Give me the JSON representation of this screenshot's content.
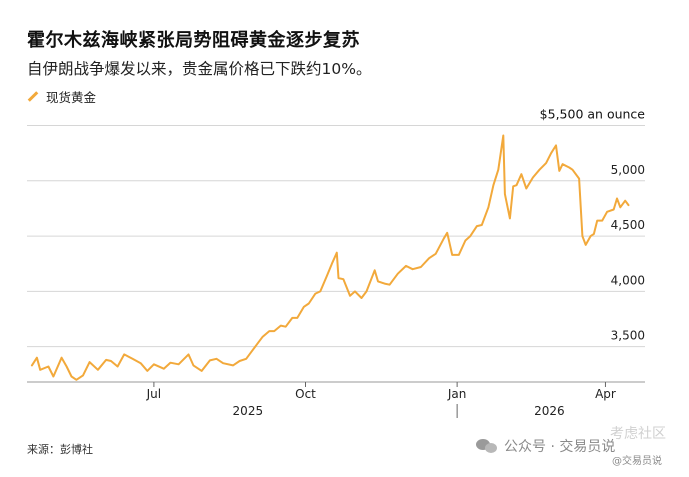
{
  "title": "霍尔木兹海峡紧张局势阻碍黄金逐步复苏",
  "subtitle": "自伊朗战争爆发以来，贵金属价格已下跌约10%。",
  "legend_label": "现货黄金",
  "source": "来源：彭博社",
  "watermark": {
    "main": "公众号 · 交易员说",
    "handle": "@交易员说",
    "faint": "考虑社区"
  },
  "colors": {
    "line": "#f2a93b",
    "grid": "#d6d6d6",
    "text": "#111111"
  },
  "chart_data": {
    "type": "line",
    "title": "霍尔木兹海峡紧张局势阻碍黄金逐步复苏",
    "subtitle": "自伊朗战争爆发以来，贵金属价格已下跌约10%。",
    "y_unit_label": "$5,500 an ounce",
    "ylim": [
      3180,
      5550
    ],
    "y_ticks": [
      {
        "value": 5500,
        "label": "$5,500 an ounce"
      },
      {
        "value": 5000,
        "label": "5,000"
      },
      {
        "value": 4500,
        "label": "4,500"
      },
      {
        "value": 4000,
        "label": "4,000"
      },
      {
        "value": 3500,
        "label": "3,500"
      }
    ],
    "xlim": [
      "2025-04-15",
      "2026-04-25"
    ],
    "x_ticks": [
      {
        "date": "2025-07-01",
        "label": "Jul"
      },
      {
        "date": "2025-10-01",
        "label": "Oct"
      },
      {
        "date": "2026-01-01",
        "label": "Jan"
      },
      {
        "date": "2026-04-01",
        "label": "Apr"
      }
    ],
    "year_labels": [
      {
        "date": "2025-08-27",
        "label": "2025"
      },
      {
        "date": "2026-02-26",
        "label": "2026"
      }
    ],
    "year_divider": "2026-01-01",
    "grid": true,
    "series": [
      {
        "name": "现货黄金",
        "points": [
          [
            "2025-04-18",
            3330
          ],
          [
            "2025-04-21",
            3400
          ],
          [
            "2025-04-23",
            3290
          ],
          [
            "2025-04-28",
            3320
          ],
          [
            "2025-05-01",
            3230
          ],
          [
            "2025-05-06",
            3400
          ],
          [
            "2025-05-09",
            3320
          ],
          [
            "2025-05-12",
            3230
          ],
          [
            "2025-05-15",
            3200
          ],
          [
            "2025-05-19",
            3240
          ],
          [
            "2025-05-23",
            3360
          ],
          [
            "2025-05-28",
            3290
          ],
          [
            "2025-06-02",
            3380
          ],
          [
            "2025-06-05",
            3370
          ],
          [
            "2025-06-09",
            3320
          ],
          [
            "2025-06-13",
            3430
          ],
          [
            "2025-06-18",
            3390
          ],
          [
            "2025-06-23",
            3350
          ],
          [
            "2025-06-27",
            3280
          ],
          [
            "2025-07-01",
            3340
          ],
          [
            "2025-07-07",
            3300
          ],
          [
            "2025-07-11",
            3355
          ],
          [
            "2025-07-16",
            3340
          ],
          [
            "2025-07-22",
            3430
          ],
          [
            "2025-07-25",
            3330
          ],
          [
            "2025-07-30",
            3280
          ],
          [
            "2025-08-04",
            3375
          ],
          [
            "2025-08-08",
            3390
          ],
          [
            "2025-08-12",
            3350
          ],
          [
            "2025-08-18",
            3330
          ],
          [
            "2025-08-22",
            3370
          ],
          [
            "2025-08-26",
            3390
          ],
          [
            "2025-08-29",
            3450
          ],
          [
            "2025-09-02",
            3530
          ],
          [
            "2025-09-05",
            3590
          ],
          [
            "2025-09-09",
            3640
          ],
          [
            "2025-09-12",
            3640
          ],
          [
            "2025-09-16",
            3690
          ],
          [
            "2025-09-19",
            3680
          ],
          [
            "2025-09-23",
            3760
          ],
          [
            "2025-09-26",
            3760
          ],
          [
            "2025-09-30",
            3860
          ],
          [
            "2025-10-03",
            3890
          ],
          [
            "2025-10-07",
            3980
          ],
          [
            "2025-10-10",
            4000
          ],
          [
            "2025-10-14",
            4140
          ],
          [
            "2025-10-17",
            4250
          ],
          [
            "2025-10-20",
            4350
          ],
          [
            "2025-10-21",
            4120
          ],
          [
            "2025-10-24",
            4110
          ],
          [
            "2025-10-28",
            3960
          ],
          [
            "2025-10-31",
            4000
          ],
          [
            "2025-11-04",
            3940
          ],
          [
            "2025-11-07",
            4000
          ],
          [
            "2025-11-12",
            4190
          ],
          [
            "2025-11-14",
            4090
          ],
          [
            "2025-11-18",
            4070
          ],
          [
            "2025-11-21",
            4060
          ],
          [
            "2025-11-26",
            4160
          ],
          [
            "2025-12-01",
            4230
          ],
          [
            "2025-12-05",
            4200
          ],
          [
            "2025-12-10",
            4220
          ],
          [
            "2025-12-15",
            4300
          ],
          [
            "2025-12-19",
            4340
          ],
          [
            "2025-12-24",
            4480
          ],
          [
            "2025-12-26",
            4530
          ],
          [
            "2025-12-29",
            4330
          ],
          [
            "2026-01-02",
            4330
          ],
          [
            "2026-01-06",
            4460
          ],
          [
            "2026-01-09",
            4500
          ],
          [
            "2026-01-13",
            4590
          ],
          [
            "2026-01-16",
            4600
          ],
          [
            "2026-01-20",
            4760
          ],
          [
            "2026-01-23",
            4960
          ],
          [
            "2026-01-26",
            5100
          ],
          [
            "2026-01-29",
            5410
          ],
          [
            "2026-01-30",
            4880
          ],
          [
            "2026-02-02",
            4660
          ],
          [
            "2026-02-04",
            4950
          ],
          [
            "2026-02-06",
            4960
          ],
          [
            "2026-02-09",
            5060
          ],
          [
            "2026-02-12",
            4930
          ],
          [
            "2026-02-16",
            5030
          ],
          [
            "2026-02-20",
            5100
          ],
          [
            "2026-02-24",
            5160
          ],
          [
            "2026-02-27",
            5250
          ],
          [
            "2026-03-02",
            5320
          ],
          [
            "2026-03-04",
            5090
          ],
          [
            "2026-03-06",
            5150
          ],
          [
            "2026-03-10",
            5120
          ],
          [
            "2026-03-12",
            5100
          ],
          [
            "2026-03-16",
            5020
          ],
          [
            "2026-03-18",
            4500
          ],
          [
            "2026-03-20",
            4420
          ],
          [
            "2026-03-23",
            4500
          ],
          [
            "2026-03-25",
            4520
          ],
          [
            "2026-03-27",
            4640
          ],
          [
            "2026-03-30",
            4640
          ],
          [
            "2026-04-02",
            4720
          ],
          [
            "2026-04-06",
            4740
          ],
          [
            "2026-04-08",
            4840
          ],
          [
            "2026-04-10",
            4760
          ],
          [
            "2026-04-13",
            4820
          ],
          [
            "2026-04-15",
            4780
          ]
        ]
      }
    ]
  }
}
